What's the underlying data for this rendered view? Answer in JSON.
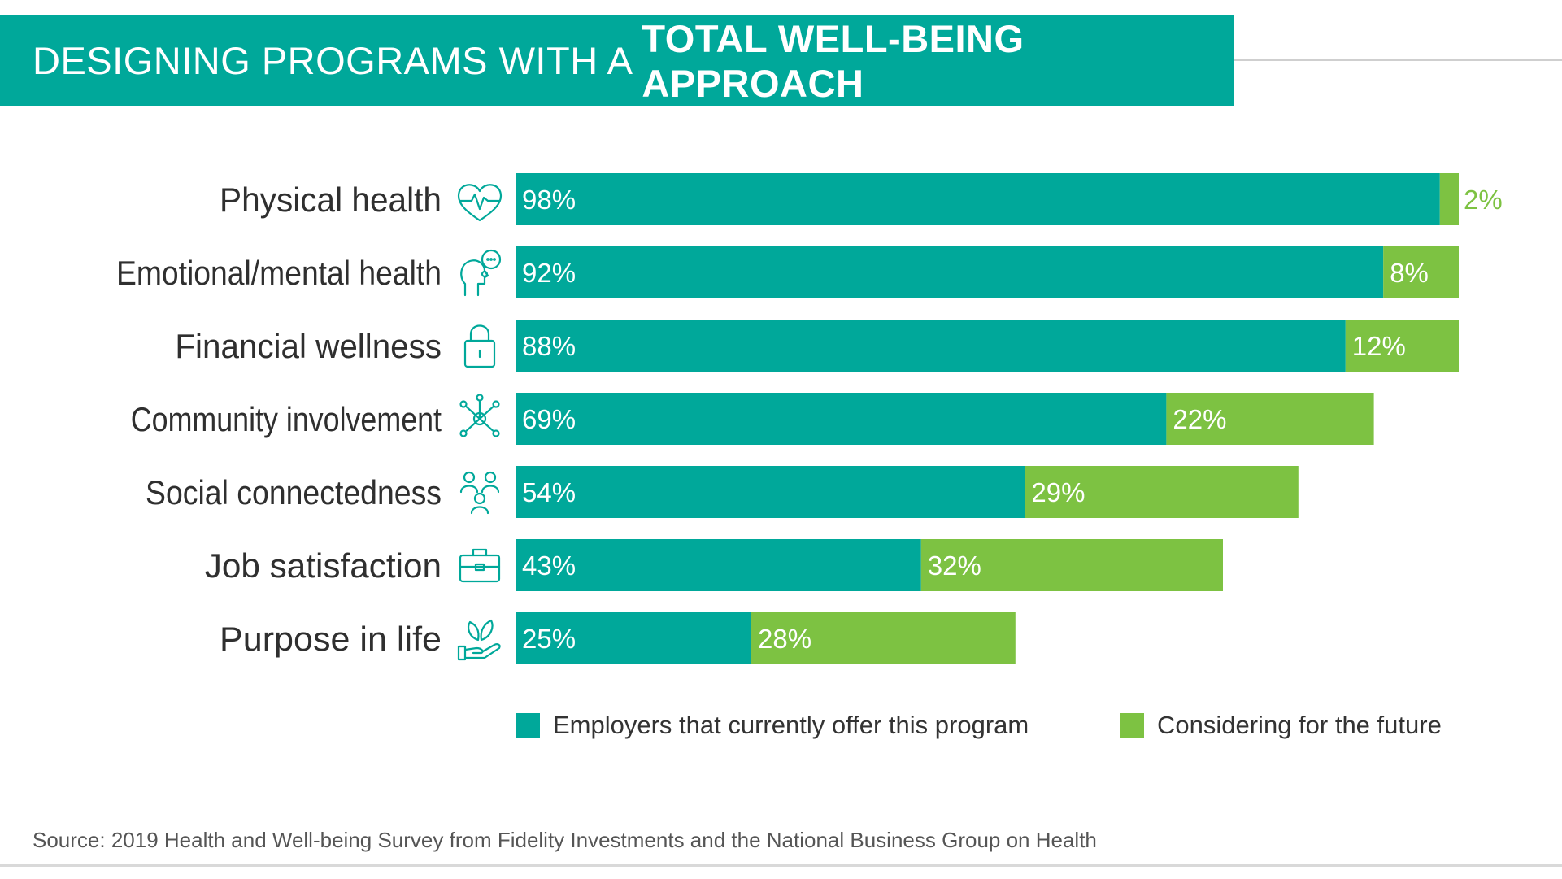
{
  "header": {
    "title_light": "DESIGNING PROGRAMS WITH A ",
    "title_bold": "TOTAL WELL-BEING APPROACH"
  },
  "colors": {
    "current": "#00a89a",
    "future": "#7dc242",
    "header_bg": "#00a89a"
  },
  "chart_data": {
    "type": "bar",
    "orientation": "horizontal",
    "stacked": true,
    "categories": [
      "Physical health",
      "Emotional/mental health",
      "Financial wellness",
      "Community involvement",
      "Social connectedness",
      "Job satisfaction",
      "Purpose in life"
    ],
    "icons": [
      "heart-pulse-icon",
      "thought-bubble-head-icon",
      "lock-icon",
      "network-icon",
      "people-group-icon",
      "briefcase-icon",
      "hand-leaf-icon"
    ],
    "series": [
      {
        "name": "Employers that currently offer this program",
        "values": [
          98,
          92,
          88,
          69,
          54,
          43,
          25
        ],
        "labels": [
          "98%",
          "92%",
          "88%",
          "69%",
          "54%",
          "43%",
          "25%"
        ]
      },
      {
        "name": "Considering for the future",
        "values": [
          2,
          8,
          12,
          22,
          29,
          32,
          28
        ],
        "labels": [
          "2%",
          "8%",
          "12%",
          "22%",
          "29%",
          "32%",
          "28%"
        ]
      }
    ],
    "xlim": [
      0,
      100
    ],
    "legend_position": "bottom",
    "grid": false
  },
  "legend": {
    "current_label": "Employers that currently offer this program",
    "future_label": "Considering for the future"
  },
  "source": "Source: 2019 Health and Well-being Survey from Fidelity Investments and the National Business Group on Health"
}
